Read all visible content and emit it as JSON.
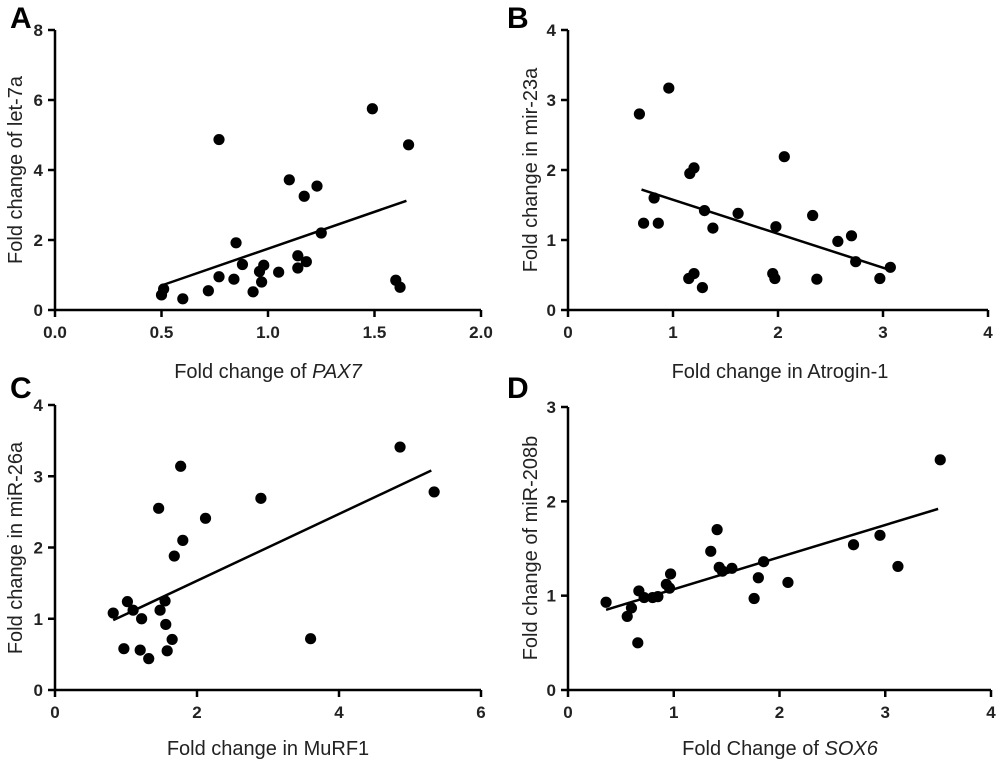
{
  "chart_data": [
    {
      "panel": "A",
      "type": "scatter",
      "xlabel": "Fold change of",
      "xlabel_italic": "PAX7",
      "ylabel": "Fold change of let-7a",
      "xlim": [
        0,
        2
      ],
      "ylim": [
        0,
        8
      ],
      "xticks": [
        "0.0",
        "0.5",
        "1.0",
        "1.5",
        "2.0"
      ],
      "xtick_values": [
        0,
        0.5,
        1,
        1.5,
        2
      ],
      "yticks": [
        "0",
        "2",
        "4",
        "6",
        "8"
      ],
      "ytick_values": [
        0,
        2,
        4,
        6,
        8
      ],
      "points": [
        [
          0.5,
          0.43
        ],
        [
          0.51,
          0.6
        ],
        [
          0.6,
          0.32
        ],
        [
          0.72,
          0.55
        ],
        [
          0.77,
          0.95
        ],
        [
          0.77,
          4.87
        ],
        [
          0.84,
          0.88
        ],
        [
          0.85,
          1.92
        ],
        [
          0.88,
          1.3
        ],
        [
          0.93,
          0.52
        ],
        [
          0.96,
          1.1
        ],
        [
          0.97,
          0.8
        ],
        [
          0.98,
          1.28
        ],
        [
          1.05,
          1.08
        ],
        [
          1.1,
          3.72
        ],
        [
          1.14,
          1.2
        ],
        [
          1.14,
          1.55
        ],
        [
          1.17,
          3.25
        ],
        [
          1.18,
          1.38
        ],
        [
          1.23,
          3.54
        ],
        [
          1.25,
          2.2
        ],
        [
          1.49,
          5.75
        ],
        [
          1.6,
          0.85
        ],
        [
          1.62,
          0.65
        ],
        [
          1.66,
          4.72
        ]
      ],
      "trend": [
        [
          0.5,
          0.7
        ],
        [
          1.65,
          3.12
        ]
      ]
    },
    {
      "panel": "B",
      "type": "scatter",
      "xlabel": "Fold change in Atrogin-1",
      "xlabel_italic": "",
      "ylabel": "Fold change in mir-23a",
      "xlim": [
        0,
        4
      ],
      "ylim": [
        0,
        4
      ],
      "xticks": [
        "0",
        "1",
        "2",
        "3",
        "4"
      ],
      "xtick_values": [
        0,
        1,
        2,
        3,
        4
      ],
      "yticks": [
        "0",
        "1",
        "2",
        "3",
        "4"
      ],
      "ytick_values": [
        0,
        1,
        2,
        3,
        4
      ],
      "points": [
        [
          0.68,
          2.8
        ],
        [
          0.72,
          1.24
        ],
        [
          0.82,
          1.6
        ],
        [
          0.86,
          1.24
        ],
        [
          0.96,
          3.17
        ],
        [
          1.15,
          0.45
        ],
        [
          1.16,
          1.95
        ],
        [
          1.2,
          0.52
        ],
        [
          1.2,
          2.03
        ],
        [
          1.28,
          0.32
        ],
        [
          1.3,
          1.42
        ],
        [
          1.38,
          1.17
        ],
        [
          1.62,
          1.38
        ],
        [
          1.95,
          0.52
        ],
        [
          1.97,
          0.45
        ],
        [
          1.98,
          1.19
        ],
        [
          2.06,
          2.19
        ],
        [
          2.33,
          1.35
        ],
        [
          2.37,
          0.44
        ],
        [
          2.57,
          0.98
        ],
        [
          2.7,
          1.06
        ],
        [
          2.74,
          0.69
        ],
        [
          2.97,
          0.45
        ],
        [
          3.07,
          0.61
        ]
      ],
      "trend": [
        [
          0.7,
          1.72
        ],
        [
          3.05,
          0.58
        ]
      ]
    },
    {
      "panel": "C",
      "type": "scatter",
      "xlabel": "Fold change in MuRF1",
      "xlabel_italic": "",
      "ylabel": "Fold change in miR-26a",
      "xlim": [
        0,
        6
      ],
      "ylim": [
        0,
        4
      ],
      "xticks": [
        "0",
        "2",
        "4",
        "6"
      ],
      "xtick_values": [
        0,
        2,
        4,
        6
      ],
      "yticks": [
        "0",
        "1",
        "2",
        "3",
        "4"
      ],
      "ytick_values": [
        0,
        1,
        2,
        3,
        4
      ],
      "points": [
        [
          0.82,
          1.08
        ],
        [
          0.97,
          0.58
        ],
        [
          1.02,
          1.24
        ],
        [
          1.1,
          1.12
        ],
        [
          1.2,
          0.56
        ],
        [
          1.22,
          1.0
        ],
        [
          1.32,
          0.44
        ],
        [
          1.46,
          2.55
        ],
        [
          1.48,
          1.12
        ],
        [
          1.55,
          1.25
        ],
        [
          1.56,
          0.92
        ],
        [
          1.58,
          0.55
        ],
        [
          1.65,
          0.71
        ],
        [
          1.68,
          1.88
        ],
        [
          1.77,
          3.14
        ],
        [
          1.8,
          2.1
        ],
        [
          2.12,
          2.41
        ],
        [
          2.9,
          2.69
        ],
        [
          3.6,
          0.72
        ],
        [
          4.86,
          3.41
        ],
        [
          5.34,
          2.78
        ]
      ],
      "trend": [
        [
          0.82,
          0.98
        ],
        [
          5.3,
          3.08
        ]
      ]
    },
    {
      "panel": "D",
      "type": "scatter",
      "xlabel": "Fold Change of",
      "xlabel_italic": "SOX6",
      "ylabel": "Fold change of miR-208b",
      "xlim": [
        0,
        4
      ],
      "ylim": [
        0,
        3
      ],
      "xticks": [
        "0",
        "1",
        "2",
        "3",
        "4"
      ],
      "xtick_values": [
        0,
        1,
        2,
        3,
        4
      ],
      "yticks": [
        "0",
        "1",
        "2",
        "3"
      ],
      "ytick_values": [
        0,
        1,
        2,
        3
      ],
      "points": [
        [
          0.36,
          0.93
        ],
        [
          0.56,
          0.78
        ],
        [
          0.6,
          0.87
        ],
        [
          0.66,
          0.5
        ],
        [
          0.67,
          1.05
        ],
        [
          0.72,
          0.98
        ],
        [
          0.8,
          0.98
        ],
        [
          0.85,
          0.99
        ],
        [
          0.93,
          1.12
        ],
        [
          0.96,
          1.08
        ],
        [
          0.97,
          1.23
        ],
        [
          1.35,
          1.47
        ],
        [
          1.41,
          1.7
        ],
        [
          1.43,
          1.3
        ],
        [
          1.46,
          1.26
        ],
        [
          1.55,
          1.29
        ],
        [
          1.76,
          0.97
        ],
        [
          1.8,
          1.19
        ],
        [
          1.85,
          1.36
        ],
        [
          2.08,
          1.14
        ],
        [
          2.7,
          1.54
        ],
        [
          2.95,
          1.64
        ],
        [
          3.12,
          1.31
        ],
        [
          3.52,
          2.44
        ]
      ],
      "trend": [
        [
          0.36,
          0.85
        ],
        [
          3.5,
          1.92
        ]
      ]
    }
  ]
}
